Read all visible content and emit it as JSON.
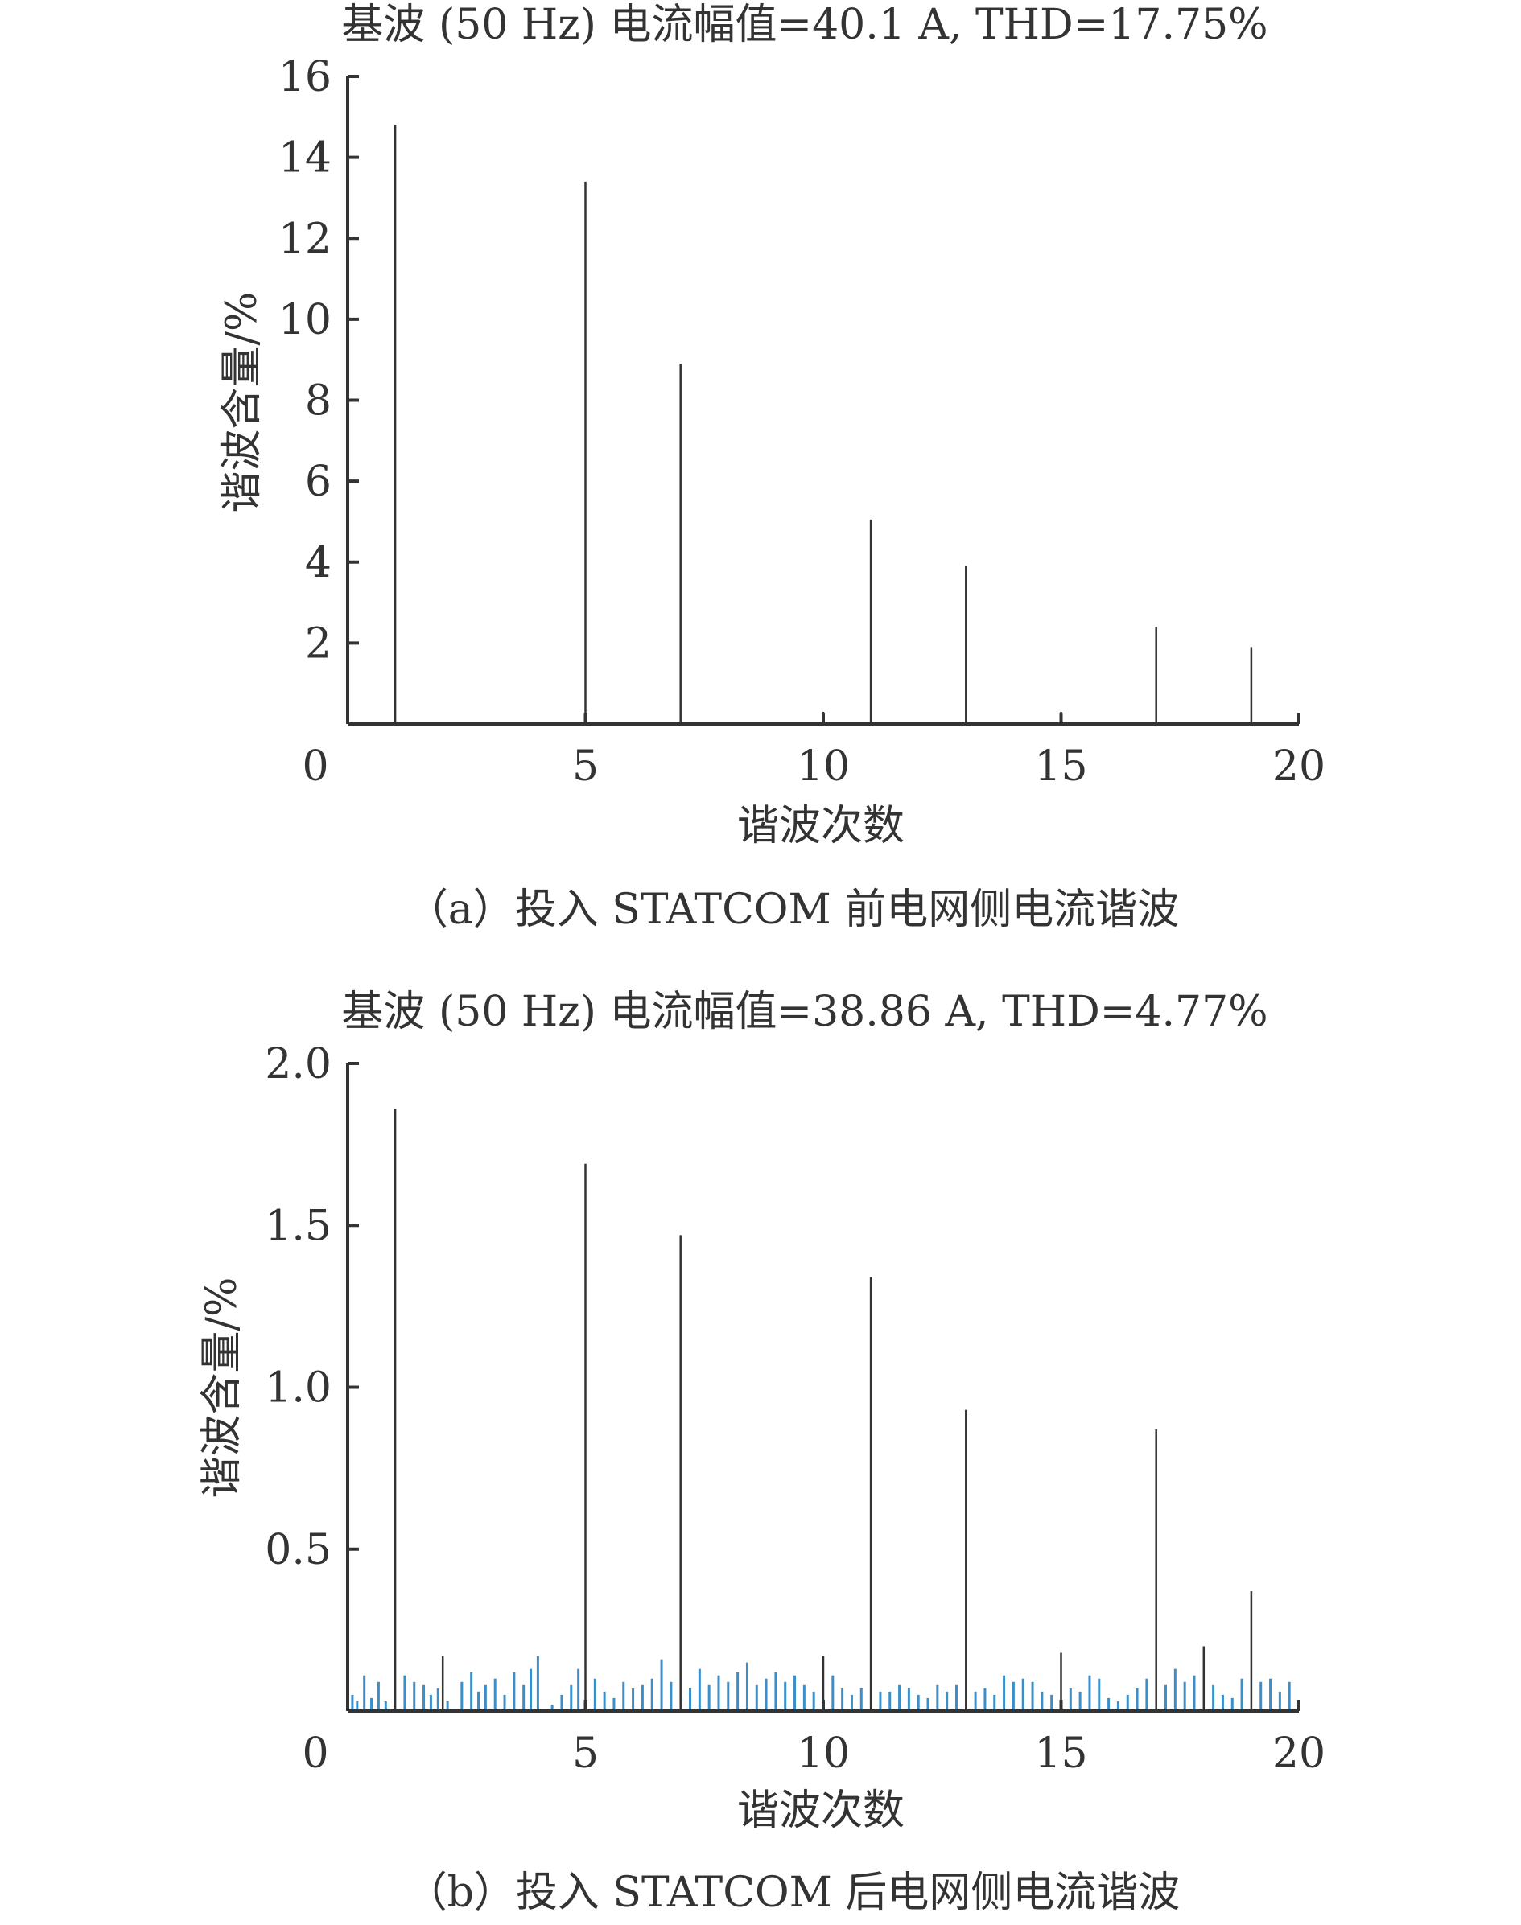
{
  "chart_data": [
    {
      "type": "bar",
      "title": "基波 (50 Hz) 电流幅值=40.1 A, THD=17.75%",
      "xlabel": "谐波次数",
      "ylabel": "谐波含量/%",
      "caption": "（a）投入 STATCOM 前电网侧电流谐波",
      "xlim": [
        0,
        20
      ],
      "ylim": [
        0,
        16
      ],
      "xticks": [
        0,
        5,
        10,
        15,
        20
      ],
      "yticks": [
        2,
        4,
        6,
        8,
        10,
        12,
        14,
        16
      ],
      "grid": false,
      "bar_color": "#333333",
      "series": [
        {
          "x": [
            1,
            5,
            7,
            10,
            11,
            13,
            15,
            17,
            19
          ],
          "values": [
            14.8,
            13.4,
            8.9,
            0.3,
            5.05,
            3.9,
            0.3,
            2.4,
            1.9
          ]
        }
      ]
    },
    {
      "type": "bar",
      "title": "基波 (50 Hz) 电流幅值=38.86 A, THD=4.77%",
      "xlabel": "谐波次数",
      "ylabel": "谐波含量/%",
      "caption": "（b）投入 STATCOM 后电网侧电流谐波",
      "xlim": [
        0,
        20
      ],
      "ylim": [
        0,
        2.0
      ],
      "xticks": [
        0,
        5,
        10,
        15,
        20
      ],
      "yticks": [
        0.5,
        1.0,
        1.5,
        2.0
      ],
      "ytick_labels": [
        "0.5",
        "1.0",
        "1.5",
        "2.0"
      ],
      "grid": false,
      "bar_color": "#333333",
      "interharmonic_color": "#3b8fc9",
      "series": [
        {
          "x": [
            1,
            2,
            5,
            7,
            10,
            11,
            13,
            15,
            17,
            18,
            19
          ],
          "values": [
            1.86,
            0.17,
            1.69,
            1.47,
            0.17,
            1.34,
            0.93,
            0.18,
            0.87,
            0.2,
            0.37
          ]
        },
        {
          "x": [
            0.1,
            0.2,
            0.35,
            0.5,
            0.65,
            0.8,
            1.2,
            1.4,
            1.6,
            1.75,
            1.9,
            2.1,
            2.4,
            2.6,
            2.75,
            2.9,
            3.1,
            3.3,
            3.5,
            3.7,
            3.85,
            4.0,
            4.3,
            4.5,
            4.7,
            4.85,
            5.2,
            5.4,
            5.6,
            5.8,
            6.0,
            6.2,
            6.4,
            6.6,
            6.8,
            7.2,
            7.4,
            7.6,
            7.8,
            8.0,
            8.2,
            8.4,
            8.6,
            8.8,
            9.0,
            9.2,
            9.4,
            9.6,
            9.8,
            10.2,
            10.4,
            10.6,
            10.8,
            11.2,
            11.4,
            11.6,
            11.8,
            12.0,
            12.2,
            12.4,
            12.6,
            12.8,
            13.2,
            13.4,
            13.6,
            13.8,
            14.0,
            14.2,
            14.4,
            14.6,
            14.8,
            15.2,
            15.4,
            15.6,
            15.8,
            16.0,
            16.2,
            16.4,
            16.6,
            16.8,
            17.2,
            17.4,
            17.6,
            17.8,
            18.2,
            18.4,
            18.6,
            18.8,
            19.2,
            19.4,
            19.6,
            19.8
          ],
          "values": [
            0.05,
            0.03,
            0.11,
            0.04,
            0.09,
            0.03,
            0.11,
            0.09,
            0.08,
            0.05,
            0.07,
            0.03,
            0.09,
            0.12,
            0.06,
            0.08,
            0.1,
            0.05,
            0.12,
            0.08,
            0.13,
            0.17,
            0.02,
            0.05,
            0.08,
            0.13,
            0.1,
            0.06,
            0.04,
            0.09,
            0.07,
            0.08,
            0.1,
            0.16,
            0.09,
            0.07,
            0.13,
            0.08,
            0.11,
            0.09,
            0.12,
            0.15,
            0.08,
            0.1,
            0.12,
            0.09,
            0.11,
            0.08,
            0.06,
            0.11,
            0.07,
            0.05,
            0.07,
            0.06,
            0.06,
            0.08,
            0.07,
            0.05,
            0.04,
            0.08,
            0.06,
            0.08,
            0.06,
            0.07,
            0.05,
            0.11,
            0.09,
            0.1,
            0.09,
            0.06,
            0.05,
            0.07,
            0.06,
            0.11,
            0.1,
            0.04,
            0.03,
            0.05,
            0.07,
            0.1,
            0.08,
            0.13,
            0.09,
            0.11,
            0.08,
            0.05,
            0.04,
            0.1,
            0.09,
            0.1,
            0.06,
            0.09
          ]
        }
      ]
    }
  ]
}
